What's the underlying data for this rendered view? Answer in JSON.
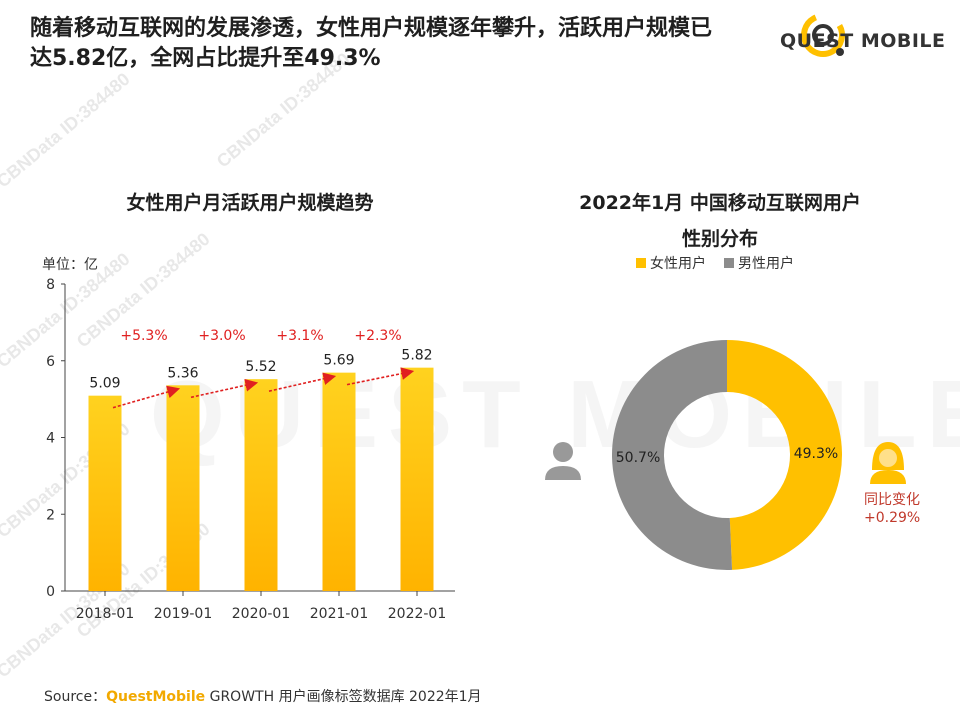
{
  "headline": "随着移动互联网的发展渗透，女性用户规模逐年攀升，活跃用户规模已达5.82亿，全网占比提升至49.3%",
  "logo": {
    "text": "QUEST MOBILE"
  },
  "watermark": {
    "text": "CBNData ID:384480",
    "big_text": "QUEST MOBILE"
  },
  "source": {
    "prefix": "Source：",
    "brand": "QuestMobile",
    "suffix": " GROWTH 用户画像标签数据库 2022年1月"
  },
  "colors": {
    "accent": "#FFC000",
    "male": "#8C8C8C",
    "growth": "#E02020"
  },
  "chart_data": [
    {
      "type": "bar",
      "title": "女性用户月活跃用户规模趋势",
      "unit_label": "单位：亿",
      "categories": [
        "2018-01",
        "2019-01",
        "2020-01",
        "2021-01",
        "2022-01"
      ],
      "values": [
        5.09,
        5.36,
        5.52,
        5.69,
        5.82
      ],
      "value_labels": [
        "5.09",
        "5.36",
        "5.52",
        "5.69",
        "5.82"
      ],
      "growth_labels": [
        "+5.3%",
        "+3.0%",
        "+3.1%",
        "+2.3%"
      ],
      "yticks": [
        "0",
        "2",
        "4",
        "6",
        "8"
      ],
      "ylim": [
        0,
        8
      ],
      "xlabel": "",
      "ylabel": ""
    },
    {
      "type": "pie",
      "title": "2022年1月 中国移动互联网用户性别分布",
      "title_line1": "2022年1月 中国移动互联网用户",
      "title_line2": "性别分布",
      "donut": true,
      "labels": [
        "女性用户",
        "男性用户"
      ],
      "values": [
        49.3,
        50.7
      ],
      "value_labels": [
        "49.3%",
        "50.7%"
      ],
      "legend_position": "top"
    }
  ],
  "yoy": {
    "label": "同比变化",
    "value": "+0.29%"
  }
}
